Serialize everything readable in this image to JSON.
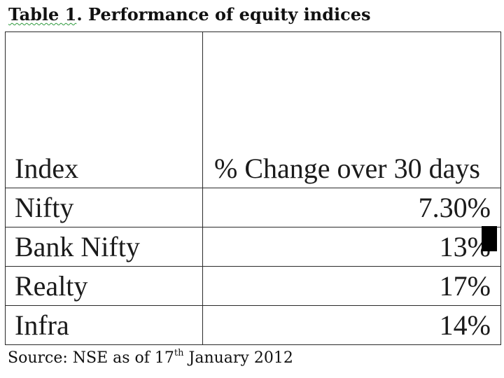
{
  "title": {
    "prefix": "Table 1",
    "rest": ". Performance of equity indices"
  },
  "table": {
    "headers": [
      "Index",
      "% Change over 30 days"
    ],
    "rows": [
      {
        "index": "Nifty",
        "change": "7.30%"
      },
      {
        "index": "Bank Nifty",
        "change": "13%"
      },
      {
        "index": "Realty",
        "change": "17%"
      },
      {
        "index": "Infra",
        "change": "14%"
      }
    ]
  },
  "source": {
    "prefix": "Source: NSE as of 17",
    "superscript": "th",
    "suffix": " January 2012"
  }
}
